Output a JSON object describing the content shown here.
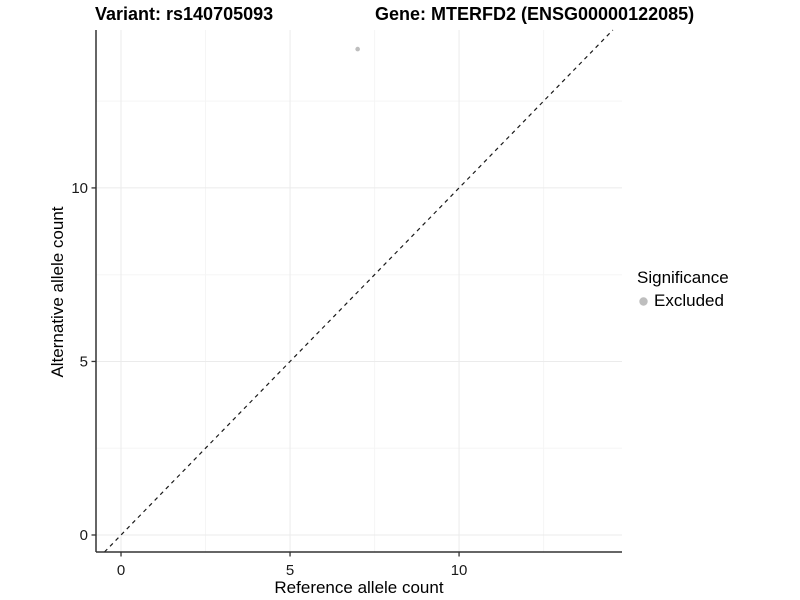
{
  "chart_data": {
    "type": "scatter",
    "title_left": "Variant: rs140705093",
    "title_right": "Gene: MTERFD2 (ENSG00000122085)",
    "xlabel": "Reference allele count",
    "ylabel": "Alternative allele count",
    "xlim": [
      -0.74,
      14.82
    ],
    "ylim": [
      -0.49,
      14.55
    ],
    "x_major_ticks": [
      0,
      5,
      10
    ],
    "y_major_ticks": [
      0,
      5,
      10
    ],
    "x_minor_gridlines": [
      2.5,
      7.5,
      12.5
    ],
    "y_minor_gridlines": [
      2.5,
      7.5,
      12.5
    ],
    "grid": true,
    "points": [
      {
        "x": 7,
        "y": 14,
        "series": "Excluded"
      }
    ],
    "reference_line": {
      "slope": 1,
      "intercept": 0,
      "style": "dashed",
      "color": "#1a1a1a"
    },
    "legend": {
      "title": "Significance",
      "position": "right",
      "items": [
        {
          "label": "Excluded",
          "color": "#bebebe"
        }
      ]
    },
    "colors": {
      "point": "#bebebe",
      "axis_line": "#333333",
      "tick_mark": "#333333",
      "tick_label": "#1a1a1a",
      "grid_major": "#ebebeb",
      "grid_minor": "#f5f5f5",
      "background": "#ffffff"
    }
  }
}
